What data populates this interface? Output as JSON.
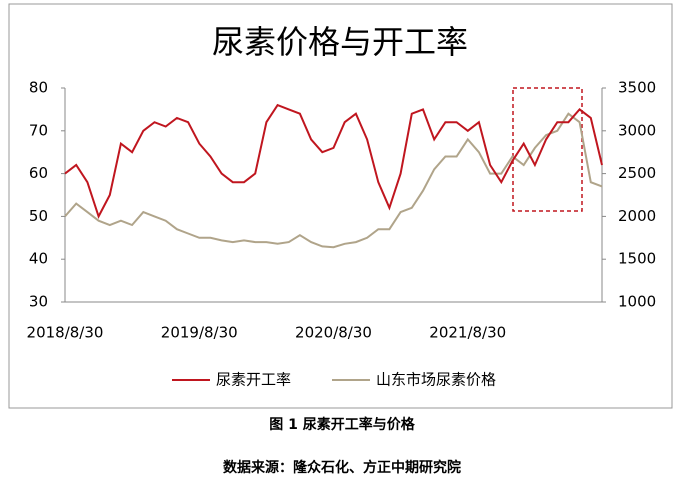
{
  "chart_data": {
    "type": "line",
    "title": "尿素价格与开工率",
    "categories": [
      "2018/8/30",
      null,
      null,
      null,
      null,
      null,
      null,
      null,
      null,
      null,
      null,
      null,
      "2019/8/30",
      null,
      null,
      null,
      null,
      null,
      null,
      null,
      null,
      null,
      null,
      null,
      "2020/8/30",
      null,
      null,
      null,
      null,
      null,
      null,
      null,
      null,
      null,
      null,
      null,
      "2021/8/30",
      null,
      null,
      null,
      null,
      null,
      null,
      null,
      null,
      null,
      null,
      null,
      null
    ],
    "series": [
      {
        "name": "尿素开工率",
        "color": "#c0161f",
        "values": [
          60,
          62,
          58,
          50,
          55,
          67,
          65,
          70,
          72,
          71,
          73,
          72,
          67,
          64,
          60,
          58,
          58,
          60,
          72,
          76,
          75,
          74,
          68,
          65,
          66,
          72,
          74,
          68,
          58,
          52,
          60,
          74,
          75,
          68,
          72,
          72,
          70,
          72,
          62,
          58,
          63,
          67,
          62,
          68,
          72,
          72,
          75,
          73,
          62
        ]
      },
      {
        "name": "山东市场尿素价格",
        "color": "#b0a48a",
        "axis": "y2",
        "values": [
          2000,
          2150,
          2050,
          1950,
          1900,
          1950,
          1900,
          2050,
          2000,
          1950,
          1850,
          1800,
          1750,
          1750,
          1720,
          1700,
          1720,
          1700,
          1700,
          1680,
          1700,
          1780,
          1700,
          1650,
          1640,
          1680,
          1700,
          1750,
          1850,
          1850,
          2050,
          2100,
          2300,
          2550,
          2700,
          2700,
          2900,
          2750,
          2500,
          2500,
          2700,
          2600,
          2800,
          2950,
          3000,
          3200,
          3100,
          2400,
          2350
        ]
      }
    ],
    "ylim": [
      30,
      80
    ],
    "yticks": [
      30,
      40,
      50,
      60,
      70,
      80
    ],
    "y2lim": [
      1000,
      3500
    ],
    "y2ticks": [
      1000,
      1500,
      2000,
      2500,
      3000,
      3500
    ],
    "grid": false,
    "legend": "bottom"
  },
  "caption": "图 1 尿素开工率与价格",
  "source": "数据来源：隆众石化、方正中期研究院"
}
